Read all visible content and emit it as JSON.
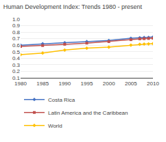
{
  "chart_data": {
    "type": "line",
    "title": "Human Development Index: Trends 1980 - present",
    "xlim": [
      1980,
      2010
    ],
    "xticks": [
      1980,
      1985,
      1990,
      1995,
      2000,
      2005,
      2010
    ],
    "ylim": [
      0.1,
      1.0
    ],
    "yticks": [
      0.1,
      0.2,
      0.3,
      0.4,
      0.5,
      0.6,
      0.7,
      0.8,
      0.9,
      {
        "value": 1.0,
        "label": "1.0"
      }
    ],
    "grid": "y",
    "legend": "bottom",
    "x": [
      1980,
      1985,
      1990,
      1995,
      2000,
      2005,
      2007,
      2008,
      2009,
      2010
    ],
    "series": [
      {
        "name": "Costa Rica",
        "color": "#4472C4",
        "marker": "diamond",
        "values": [
          0.6,
          0.622,
          0.638,
          0.655,
          0.672,
          0.706,
          0.714,
          0.718,
          0.72,
          0.725
        ]
      },
      {
        "name": "Latin America and the Caribbean",
        "color": "#C0504D",
        "marker": "square",
        "values": [
          0.582,
          0.595,
          0.614,
          0.632,
          0.655,
          0.685,
          0.697,
          0.7,
          0.703,
          0.706
        ]
      },
      {
        "name": "World",
        "color": "#FFC000",
        "marker": "diamond",
        "values": [
          0.455,
          0.48,
          0.526,
          0.554,
          0.57,
          0.602,
          0.614,
          0.618,
          0.62,
          0.624
        ]
      }
    ]
  }
}
